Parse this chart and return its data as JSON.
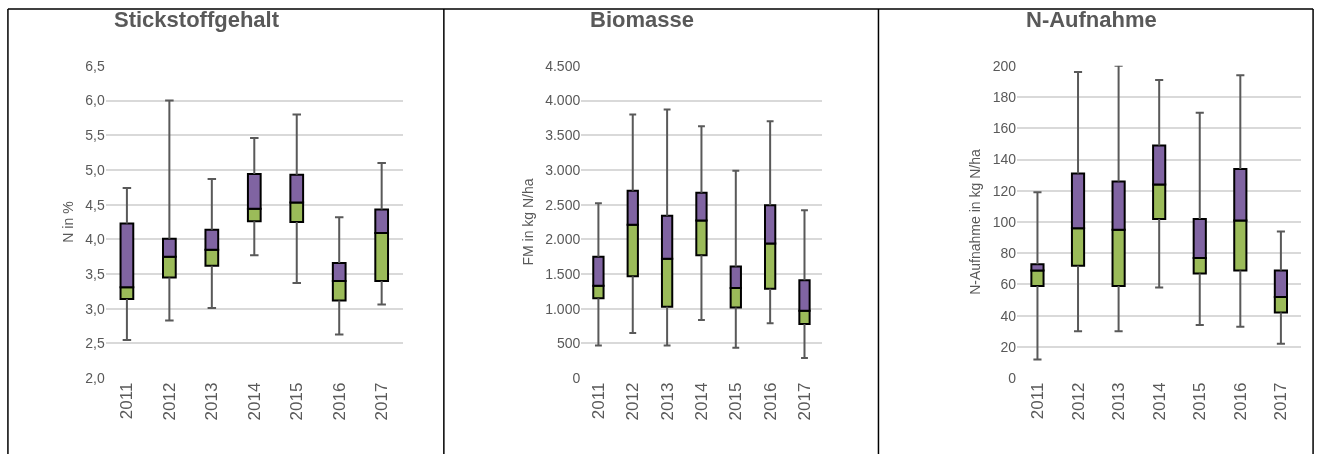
{
  "chart_data": [
    {
      "type": "box",
      "title": "Stickstoffgehalt",
      "ylabel": "N in %",
      "categories": [
        "2011",
        "2012",
        "2013",
        "2014",
        "2015",
        "2016",
        "2017"
      ],
      "ylim": [
        2.0,
        6.5
      ],
      "yticks": [
        {
          "value": 2.0,
          "label": "2,0"
        },
        {
          "value": 2.5,
          "label": "2,5"
        },
        {
          "value": 3.0,
          "label": "3,0"
        },
        {
          "value": 3.5,
          "label": "3,5"
        },
        {
          "value": 4.0,
          "label": "4,0"
        },
        {
          "value": 4.5,
          "label": "4,5"
        },
        {
          "value": 5.0,
          "label": "5,0"
        },
        {
          "value": 5.5,
          "label": "5,5"
        },
        {
          "value": 6.0,
          "label": "6,0"
        },
        {
          "value": 6.5,
          "label": "6,5"
        }
      ],
      "grid": "y",
      "colors": [
        [
          "#9bbb59",
          "#8064a2"
        ],
        [
          "#9bbb59",
          "#8064a2"
        ],
        [
          "#9bbb59",
          "#8064a2"
        ],
        [
          "#9bbb59",
          "#8064a2"
        ],
        [
          "#9bbb59",
          "#8064a2"
        ],
        [
          "#9bbb59",
          "#8064a2"
        ],
        [
          "#9bbb59",
          "#8064a2"
        ]
      ],
      "boxes": [
        {
          "low": 2.55,
          "q1": 3.14,
          "median": 3.31,
          "q3": 4.23,
          "high": 4.74
        },
        {
          "low": 2.83,
          "q1": 3.45,
          "median": 3.75,
          "q3": 4.01,
          "high": 6.0
        },
        {
          "low": 3.01,
          "q1": 3.62,
          "median": 3.85,
          "q3": 4.14,
          "high": 4.87
        },
        {
          "low": 3.77,
          "q1": 4.26,
          "median": 4.44,
          "q3": 4.94,
          "high": 5.46
        },
        {
          "low": 3.37,
          "q1": 4.25,
          "median": 4.53,
          "q3": 4.93,
          "high": 5.8
        },
        {
          "low": 2.63,
          "q1": 3.12,
          "median": 3.4,
          "q3": 3.66,
          "high": 4.32
        },
        {
          "low": 3.06,
          "q1": 3.4,
          "median": 4.09,
          "q3": 4.43,
          "high": 5.1
        }
      ]
    },
    {
      "type": "box",
      "title": "Biomasse",
      "ylabel": "FM in kg N/ha",
      "categories": [
        "2011",
        "2012",
        "2013",
        "2014",
        "2015",
        "2016",
        "2017"
      ],
      "ylim": [
        0,
        4500
      ],
      "yticks": [
        0,
        {
          "value": 500,
          "label": "500"
        },
        {
          "value": 1000,
          "label": "1.000"
        },
        {
          "value": 1500,
          "label": "1.500"
        },
        {
          "value": 2000,
          "label": "2.000"
        },
        {
          "value": 2500,
          "label": "2.500"
        },
        {
          "value": 3000,
          "label": "3.000"
        },
        {
          "value": 3500,
          "label": "3.500"
        },
        {
          "value": 4000,
          "label": "4.000"
        },
        {
          "value": 4500,
          "label": "4.500"
        }
      ],
      "grid": "y",
      "colors": [
        [
          "#9bbb59",
          "#8064a2"
        ],
        [
          "#9bbb59",
          "#8064a2"
        ],
        [
          "#9bbb59",
          "#8064a2"
        ],
        [
          "#9bbb59",
          "#8064a2"
        ],
        [
          "#9bbb59",
          "#8064a2"
        ],
        [
          "#9bbb59",
          "#8064a2"
        ],
        [
          "#9bbb59",
          "#8064a2"
        ]
      ],
      "boxes": [
        {
          "low": 470,
          "q1": 1150,
          "median": 1330,
          "q3": 1750,
          "high": 2520
        },
        {
          "low": 650,
          "q1": 1470,
          "median": 2210,
          "q3": 2700,
          "high": 3800
        },
        {
          "low": 470,
          "q1": 1030,
          "median": 1720,
          "q3": 2340,
          "high": 3870
        },
        {
          "low": 840,
          "q1": 1770,
          "median": 2270,
          "q3": 2670,
          "high": 3630
        },
        {
          "low": 440,
          "q1": 1020,
          "median": 1300,
          "q3": 1610,
          "high": 2990
        },
        {
          "low": 790,
          "q1": 1290,
          "median": 1940,
          "q3": 2490,
          "high": 3700
        },
        {
          "low": 290,
          "q1": 780,
          "median": 970,
          "q3": 1410,
          "high": 2420
        }
      ]
    },
    {
      "type": "box",
      "title": "N-Aufnahme",
      "ylabel": "N-Aufnahme in kg N/ha",
      "categories": [
        "2011",
        "2012",
        "2013",
        "2014",
        "2015",
        "2016",
        "2017"
      ],
      "ylim": [
        0,
        200
      ],
      "yticks": [
        0,
        20,
        40,
        60,
        80,
        100,
        120,
        140,
        160,
        180,
        200
      ],
      "grid": "y",
      "colors": [
        [
          "#9bbb59",
          "#8064a2"
        ],
        [
          "#9bbb59",
          "#8064a2"
        ],
        [
          "#9bbb59",
          "#8064a2"
        ],
        [
          "#9bbb59",
          "#8064a2"
        ],
        [
          "#9bbb59",
          "#8064a2"
        ],
        [
          "#9bbb59",
          "#8064a2"
        ],
        [
          "#9bbb59",
          "#8064a2"
        ]
      ],
      "boxes": [
        {
          "low": 12,
          "q1": 59,
          "median": 69,
          "q3": 73,
          "high": 119
        },
        {
          "low": 30,
          "q1": 72,
          "median": 96,
          "q3": 131,
          "high": 196
        },
        {
          "low": 30,
          "q1": 59,
          "median": 95,
          "q3": 126,
          "high": 200
        },
        {
          "low": 58,
          "q1": 102,
          "median": 124,
          "q3": 149,
          "high": 191
        },
        {
          "low": 34,
          "q1": 67,
          "median": 77,
          "q3": 102,
          "high": 170
        },
        {
          "low": 33,
          "q1": 69,
          "median": 101,
          "q3": 134,
          "high": 194
        },
        {
          "low": 22,
          "q1": 42,
          "median": 52,
          "q3": 69,
          "high": 94
        }
      ]
    }
  ]
}
